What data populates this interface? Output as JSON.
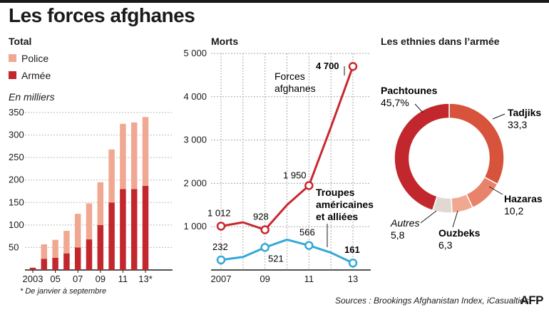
{
  "title": "Les forces afghanes",
  "footnote": "* De janvier à septembre",
  "source": "Sources : Brookings Afghanistan Index, iCasualties",
  "agency": "AFP",
  "colors": {
    "police": "#f0a892",
    "armee": "#c1272d",
    "forces": "#c8282e",
    "troupes": "#33a8d9",
    "dark": "#1a1a1a"
  },
  "chart_data": [
    {
      "type": "bar",
      "title": "Total",
      "subtitle": "En milliers",
      "stacked": true,
      "categories": [
        "2003",
        "2004",
        "2005",
        "2006",
        "2007",
        "2008",
        "2009",
        "2010",
        "2011",
        "2012",
        "2013*"
      ],
      "x_tick_labels": [
        "2003",
        "05",
        "07",
        "09",
        "11",
        "13*"
      ],
      "ylim": [
        0,
        350
      ],
      "yticks": [
        50,
        100,
        150,
        200,
        250,
        300,
        350
      ],
      "series": [
        {
          "name": "Armée",
          "values": [
            5,
            25,
            27,
            37,
            50,
            68,
            100,
            150,
            180,
            180,
            187
          ]
        },
        {
          "name": "Police",
          "values": [
            0,
            32,
            40,
            50,
            75,
            80,
            95,
            118,
            145,
            148,
            153
          ]
        }
      ],
      "legend": [
        "Police",
        "Armée"
      ]
    },
    {
      "type": "line",
      "title": "Morts",
      "x": [
        2007,
        2008,
        2009,
        2010,
        2011,
        2012,
        2013
      ],
      "x_tick_labels": [
        "2007",
        "09",
        "11",
        "13"
      ],
      "ylim": [
        0,
        5000
      ],
      "yticks": [
        1000,
        2000,
        3000,
        4000,
        5000
      ],
      "ytick_labels": [
        "1 000",
        "2 000",
        "3 000",
        "4 000",
        "5 000"
      ],
      "series": [
        {
          "name": "Forces afghanes",
          "values": [
            1012,
            1100,
            928,
            1500,
            1950,
            3300,
            4700
          ],
          "labels": {
            "2007": "1 012",
            "2009": "928",
            "2011": "1 950",
            "2013": "4 700"
          }
        },
        {
          "name": "Troupes américaines et alliées",
          "values": [
            232,
            300,
            521,
            700,
            566,
            400,
            161
          ],
          "labels": {
            "2007": "232",
            "2009": "521",
            "2011": "566",
            "2013": "161"
          }
        }
      ],
      "annotations": {
        "forces_line1": "Forces",
        "forces_line2": "afghanes",
        "troupes_line1": "Troupes",
        "troupes_line2": "américaines",
        "troupes_line3": "et alliées"
      }
    },
    {
      "type": "pie",
      "title": "Les ethnies dans l’armée",
      "donut": true,
      "slices": [
        {
          "name": "Tadjiks",
          "value": 33.3,
          "label": "33,3",
          "color": "#d7533b"
        },
        {
          "name": "Hazaras",
          "value": 10.2,
          "label": "10,2",
          "color": "#e9826a"
        },
        {
          "name": "Ouzbeks",
          "value": 6.3,
          "label": "6,3",
          "color": "#f0a892"
        },
        {
          "name": "Autres",
          "value": 5.8,
          "label": "5,8",
          "color": "#e1d8d2"
        },
        {
          "name": "Pachtounes",
          "value": 45.7,
          "label": "45,7%",
          "color": "#c1272d"
        }
      ]
    }
  ]
}
